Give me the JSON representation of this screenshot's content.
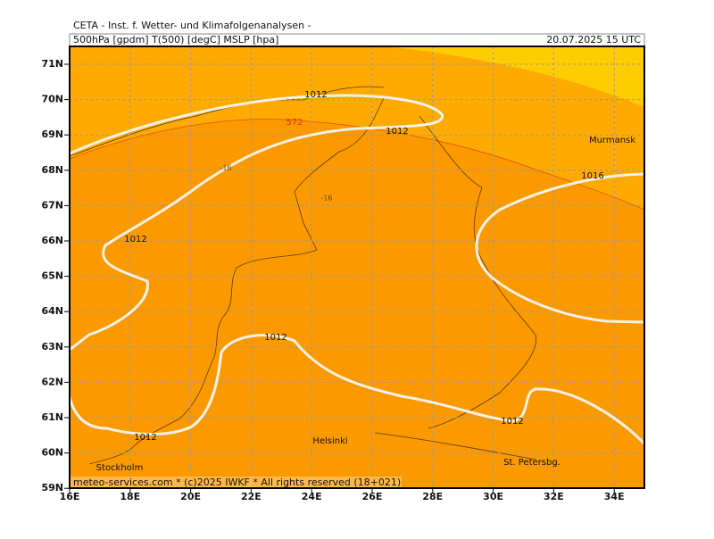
{
  "header": {
    "title": "CETA - Inst. f. Wetter- und Klimafolgenanalysen -",
    "fields": "500hPa [gpdm] T(500) [degC] MSLP [hpa]",
    "valid": "20.07.2025 15 UTC"
  },
  "map": {
    "lat_labels": [
      "71N",
      "70N",
      "69N",
      "68N",
      "67N",
      "66N",
      "65N",
      "64N",
      "63N",
      "62N",
      "61N",
      "60N",
      "59N"
    ],
    "lon_labels": [
      "16E",
      "18E",
      "20E",
      "22E",
      "24E",
      "26E",
      "28E",
      "30E",
      "32E",
      "34E"
    ],
    "contour_labels": [
      "1012",
      "1012",
      "1012",
      "1012",
      "1012",
      "1012",
      "1016"
    ],
    "temperature_labels": [
      "-16",
      "-16"
    ],
    "height_label": "572",
    "place_labels": [
      "Murmansk",
      "Helsinki",
      "Stockholm",
      "St. Petersbg."
    ]
  },
  "footer": "meteo-services.com * (c)2025 IWKF * All rights reserved (18+021)"
}
